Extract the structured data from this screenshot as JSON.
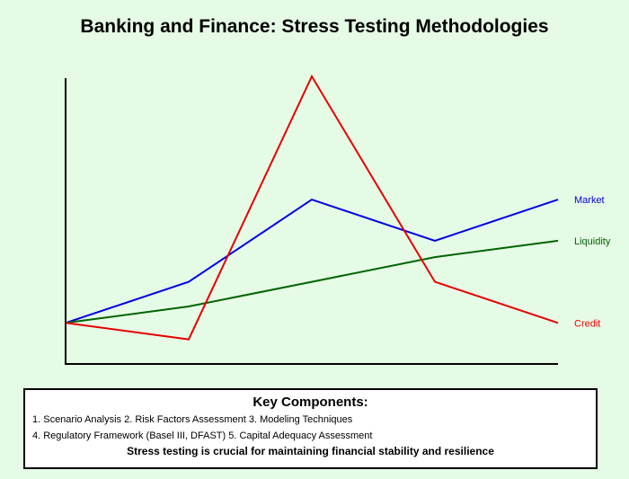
{
  "title": "Banking and Finance: Stress Testing Methodologies",
  "chart_data": {
    "type": "line",
    "title": "Banking and Finance: Stress Testing Methodologies",
    "xlabel": "",
    "ylabel": "",
    "x": [
      0,
      1,
      2,
      3,
      4
    ],
    "ylim": [
      0,
      70
    ],
    "grid": false,
    "legend": "right, inline at line ends",
    "series": [
      {
        "name": "Market",
        "color": "#0000e6",
        "values": [
          10,
          20,
          40,
          30,
          40
        ]
      },
      {
        "name": "Liquidity",
        "color": "#006400",
        "values": [
          10,
          14,
          20,
          26,
          30
        ]
      },
      {
        "name": "Credit",
        "color": "#e60000",
        "values": [
          10,
          6,
          70,
          20,
          10
        ]
      }
    ]
  },
  "key": {
    "heading": "Key Components:",
    "line1": "1. Scenario Analysis 2. Risk Factors Assessment 3. Modeling Techniques",
    "line2": "4. Regulatory Framework (Basel III, DFAST) 5. Capital Adequacy Assessment",
    "note": "Stress testing is crucial for maintaining financial stability and resilience"
  }
}
